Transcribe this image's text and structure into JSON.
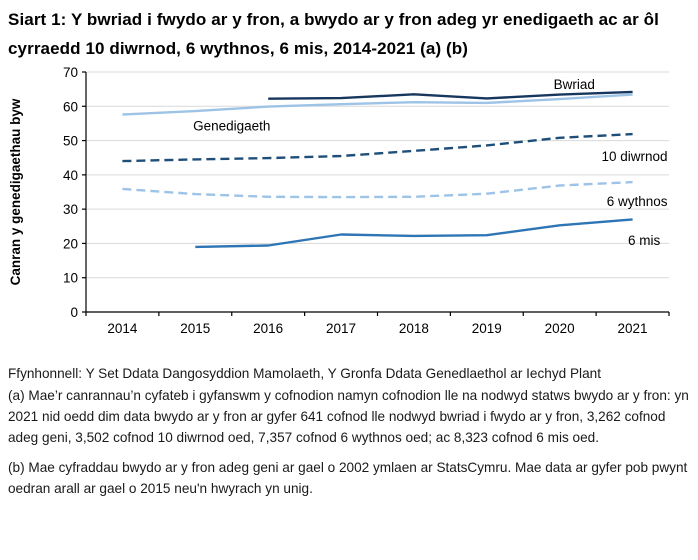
{
  "page": {
    "title": "Siart 1: Y bwriad i fwydo ar y fron, a bwydo ar y fron adeg yr enedigaeth ac ar ôl cyrraedd 10 diwrnod, 6 wythnos, 6 mis, 2014-2021 (a) (b)"
  },
  "chart_data": {
    "type": "line",
    "title": "Siart 1: Y bwriad i fwydo ar y fron, a bwydo ar y fron adeg yr enedigaeth ac ar ôl cyrraedd 10 diwrnod, 6 wythnos, 6 mis, 2014-2021 (a) (b)",
    "xlabel": "",
    "ylabel": "Canran y genedigaethau byw",
    "ylim": [
      0,
      70
    ],
    "ytick_step": 10,
    "grid": "horizontal",
    "grid_color": "#D9D9D9",
    "axis_color": "#000000",
    "legend": "inline-labels",
    "categories": [
      "2014",
      "2015",
      "2016",
      "2017",
      "2018",
      "2019",
      "2020",
      "2021"
    ],
    "series": [
      {
        "name": "Bwriad",
        "color": "#17375E",
        "dash": false,
        "values": [
          null,
          null,
          62.2,
          62.4,
          63.5,
          62.3,
          63.4,
          64.2
        ]
      },
      {
        "name": "Genedigaeth",
        "color": "#9DC3E6",
        "dash": false,
        "values": [
          57.6,
          58.6,
          59.9,
          60.6,
          61.2,
          61.0,
          62.1,
          63.4
        ]
      },
      {
        "name": "10 diwrnod",
        "color": "#1F4E79",
        "dash": true,
        "values": [
          44.0,
          44.5,
          44.9,
          45.5,
          47.0,
          48.6,
          50.8,
          51.9
        ]
      },
      {
        "name": "6 wythnos",
        "color": "#9DC3E6",
        "dash": true,
        "values": [
          35.9,
          34.4,
          33.6,
          33.5,
          33.6,
          34.5,
          36.9,
          37.9
        ]
      },
      {
        "name": "6 mis",
        "color": "#2E75B6",
        "dash": false,
        "values": [
          null,
          19.0,
          19.4,
          22.6,
          22.2,
          22.4,
          25.3,
          27.0
        ]
      }
    ],
    "annotations": [
      {
        "text": "Bwriad",
        "x": 2020.2,
        "y": 65.0,
        "anchor": "middle"
      },
      {
        "text": "Genedigaeth",
        "x": 2015.5,
        "y": 52.9,
        "anchor": "middle"
      },
      {
        "text": "10 diwrnod",
        "x": 2021.48,
        "y": 44.0,
        "anchor": "end"
      },
      {
        "text": "6 wythnos",
        "x": 2021.48,
        "y": 30.9,
        "anchor": "end"
      },
      {
        "text": "6 mis",
        "x": 2021.38,
        "y": 19.6,
        "anchor": "end"
      }
    ]
  },
  "footnotes": {
    "source": "Ffynhonnell: Y Set Ddata Dangosyddion Mamolaeth, Y Gronfa Ddata Genedlaethol ar Iechyd Plant",
    "note_a": "(a) Mae’r canrannau’n cyfateb i gyfanswm y cofnodion namyn cofnodion lle na nodwyd statws bwydo ar y fron: yn 2021 nid oedd dim data bwydo ar y fron ar gyfer 641 cofnod lle nodwyd bwriad i fwydo ar y fron, 3,262 cofnod adeg geni, 3,502 cofnod 10 diwrnod oed, 7,357 cofnod 6 wythnos oed; ac 8,323 cofnod 6 mis oed.",
    "note_b": "(b) Mae cyfraddau bwydo ar y fron adeg geni ar gael o 2002 ymlaen ar StatsCymru. Mae data ar gyfer pob pwynt oedran arall ar gael o 2015 neu'n hwyrach yn unig."
  }
}
